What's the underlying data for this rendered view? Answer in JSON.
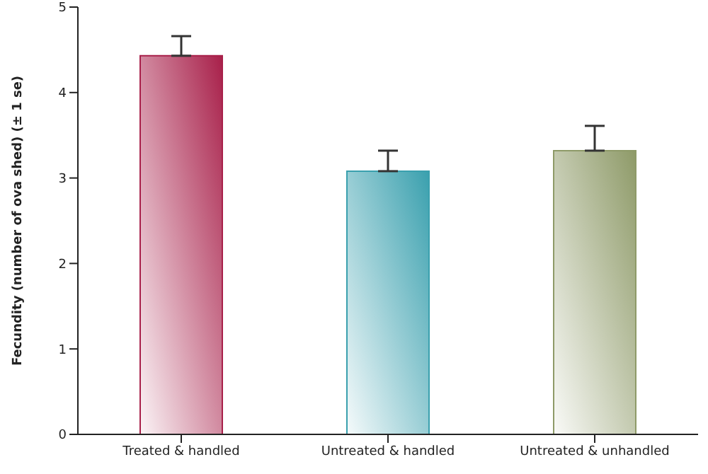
{
  "chart_data": {
    "type": "bar",
    "ylabel": "Fecundity (number of ova shed) (± 1 se)",
    "categories": [
      "Treated & handled",
      "Untreated & handled",
      "Untreated & unhandled"
    ],
    "values": [
      4.43,
      3.08,
      3.32
    ],
    "errors": [
      [
        4.43,
        4.66
      ],
      [
        3.08,
        3.32
      ],
      [
        3.32,
        3.61
      ]
    ],
    "colors": [
      "#a8204a",
      "#3aa0ae",
      "#8e9a68"
    ],
    "ylim": [
      0,
      5
    ],
    "yticks": [
      0,
      1,
      2,
      3,
      4,
      5
    ],
    "grid": false,
    "legend": false
  }
}
